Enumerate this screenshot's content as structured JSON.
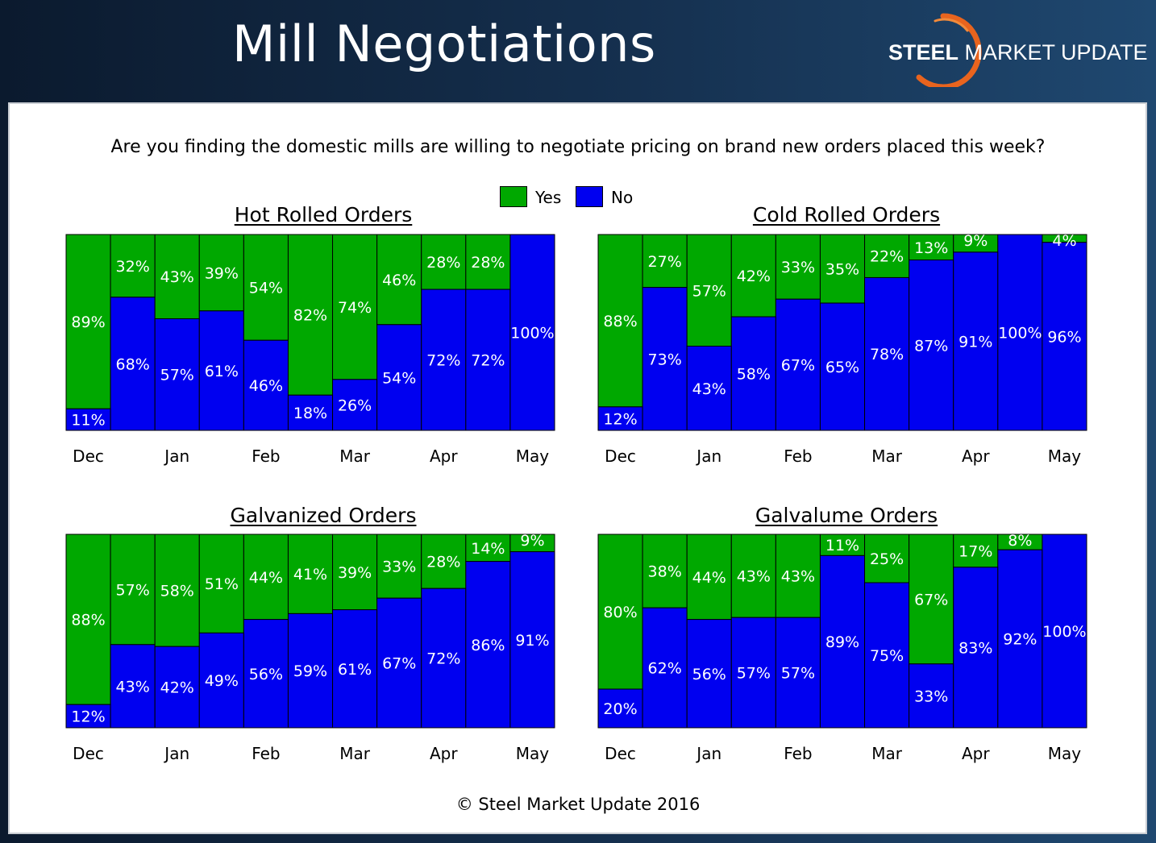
{
  "header": {
    "title": "Mill Negotiations",
    "logo": {
      "bold_text": "STEEL",
      "light_text": " MARKET UPDATE",
      "ring_color": "#e8641e"
    }
  },
  "question": "Are you finding the domestic mills are willing to negotiate pricing on brand new orders placed this week?",
  "legend": [
    {
      "label": "Yes",
      "color": "#00a800"
    },
    {
      "label": "No",
      "color": "#0000f0"
    }
  ],
  "colors": {
    "yes": "#00a800",
    "no": "#0000f0",
    "bar_border": "#000000",
    "label_text": "#ffffff"
  },
  "copyright": "© Steel Market Update 2016",
  "chart_data": [
    {
      "type": "bar",
      "stacked": true,
      "title": "Hot Rolled Orders",
      "tick_labels": [
        "Dec",
        "Jan",
        "Feb",
        "Mar",
        "Apr",
        "May"
      ],
      "series": [
        {
          "name": "No",
          "values": [
            11,
            68,
            57,
            61,
            46,
            18,
            26,
            54,
            72,
            72,
            100
          ],
          "labels": [
            "11%",
            "68%",
            "57%",
            "61%",
            "46%",
            "18%",
            "26%",
            "54%",
            "72%",
            "72%",
            "100%"
          ]
        },
        {
          "name": "Yes",
          "values": [
            89,
            32,
            43,
            39,
            54,
            82,
            74,
            46,
            28,
            28,
            0
          ],
          "labels": [
            "89%",
            "32%",
            "43%",
            "39%",
            "54%",
            "82%",
            "74%",
            "46%",
            "28%",
            "28%",
            ""
          ]
        }
      ],
      "ylim": [
        0,
        100
      ]
    },
    {
      "type": "bar",
      "stacked": true,
      "title": "Cold Rolled Orders",
      "tick_labels": [
        "Dec",
        "Jan",
        "Feb",
        "Mar",
        "Apr",
        "May"
      ],
      "series": [
        {
          "name": "No",
          "values": [
            12,
            73,
            43,
            58,
            67,
            65,
            78,
            87,
            91,
            100,
            96
          ],
          "labels": [
            "12%",
            "73%",
            "43%",
            "58%",
            "67%",
            "65%",
            "78%",
            "87%",
            "91%",
            "100%",
            "96%"
          ]
        },
        {
          "name": "Yes",
          "values": [
            88,
            27,
            57,
            42,
            33,
            35,
            22,
            13,
            9,
            0,
            4
          ],
          "labels": [
            "88%",
            "27%",
            "57%",
            "42%",
            "33%",
            "35%",
            "22%",
            "13%",
            "9%",
            "",
            "4%"
          ]
        }
      ],
      "ylim": [
        0,
        100
      ]
    },
    {
      "type": "bar",
      "stacked": true,
      "title": "Galvanized Orders",
      "tick_labels": [
        "Dec",
        "Jan",
        "Feb",
        "Mar",
        "Apr",
        "May"
      ],
      "series": [
        {
          "name": "No",
          "values": [
            12,
            43,
            42,
            49,
            56,
            59,
            61,
            67,
            72,
            86,
            91
          ],
          "labels": [
            "12%",
            "43%",
            "42%",
            "49%",
            "56%",
            "59%",
            "61%",
            "67%",
            "72%",
            "86%",
            "91%"
          ]
        },
        {
          "name": "Yes",
          "values": [
            88,
            57,
            58,
            51,
            44,
            41,
            39,
            33,
            28,
            14,
            9
          ],
          "labels": [
            "88%",
            "57%",
            "58%",
            "51%",
            "44%",
            "41%",
            "39%",
            "33%",
            "28%",
            "14%",
            "9%"
          ]
        }
      ],
      "ylim": [
        0,
        100
      ]
    },
    {
      "type": "bar",
      "stacked": true,
      "title": "Galvalume Orders",
      "tick_labels": [
        "Dec",
        "Jan",
        "Feb",
        "Mar",
        "Apr",
        "May"
      ],
      "series": [
        {
          "name": "No",
          "values": [
            20,
            62,
            56,
            57,
            57,
            89,
            75,
            33,
            83,
            92,
            100
          ],
          "labels": [
            "20%",
            "62%",
            "56%",
            "57%",
            "57%",
            "89%",
            "75%",
            "33%",
            "83%",
            "92%",
            "100%"
          ]
        },
        {
          "name": "Yes",
          "values": [
            80,
            38,
            44,
            43,
            43,
            11,
            25,
            67,
            17,
            8,
            0
          ],
          "labels": [
            "80%",
            "38%",
            "44%",
            "43%",
            "43%",
            "11%",
            "25%",
            "67%",
            "17%",
            "8%",
            ""
          ]
        }
      ],
      "ylim": [
        0,
        100
      ]
    }
  ]
}
